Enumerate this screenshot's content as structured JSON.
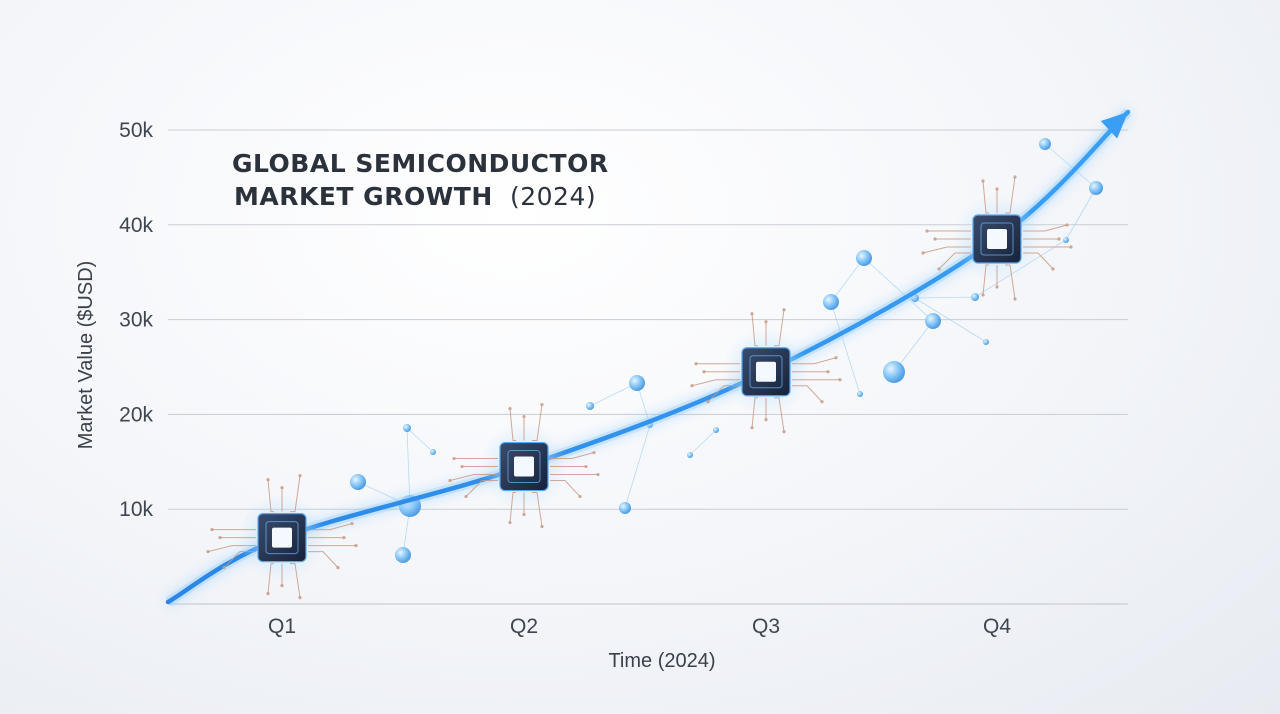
{
  "chart_data": {
    "type": "line",
    "title_line1": "GLOBAL SEMICONDUCTOR",
    "title_line2": "MARKET GROWTH",
    "title_year": "(2024)",
    "xlabel": "Time (2024)",
    "ylabel": "Market Value ($USD)",
    "categories": [
      "Q1",
      "Q2",
      "Q3",
      "Q4"
    ],
    "y_ticks": [
      "10k",
      "20k",
      "30k",
      "40k",
      "50k"
    ],
    "ylim": [
      0,
      50000
    ],
    "grid": true,
    "series": [
      {
        "values": [
          7000,
          14500,
          24500,
          38500
        ]
      }
    ],
    "line_color": "#2f8fea",
    "marker": "microchip-icon"
  }
}
